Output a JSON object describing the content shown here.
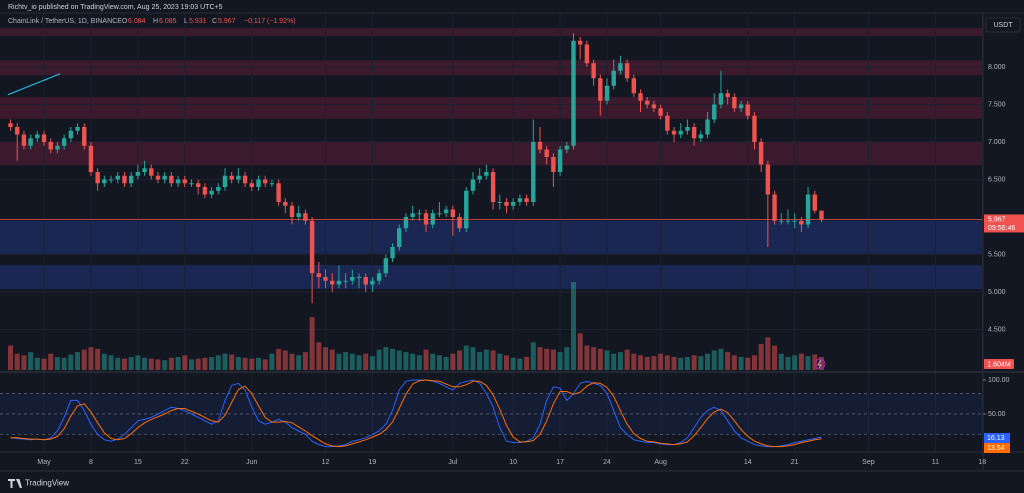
{
  "header": {
    "publisher": "Richtv_io published on TradingView.com, Aug 25, 2023 19:03 UTC+5"
  },
  "chart_data": {
    "type": "candlestick",
    "title": "ChainLink / TetherUS, 1D, BINANCE",
    "legend": [
      {
        "key": "O",
        "value": 6.084
      },
      {
        "key": "H",
        "value": 6.085
      },
      {
        "key": "L",
        "value": 5.931
      },
      {
        "key": "C",
        "value": 5.967
      }
    ],
    "change": "−0.117 (−1.92%)",
    "currency": "USDT",
    "xlim": [
      -1.57,
      145.1
    ],
    "xticks": [
      {
        "value": 5,
        "label": "May"
      },
      {
        "value": 12,
        "label": "8"
      },
      {
        "value": 19,
        "label": "15"
      },
      {
        "value": 26,
        "label": "22"
      },
      {
        "value": 36,
        "label": "Jun"
      },
      {
        "value": 47,
        "label": "12"
      },
      {
        "value": 54,
        "label": "19"
      },
      {
        "value": 66,
        "label": "Jul"
      },
      {
        "value": 75,
        "label": "10"
      },
      {
        "value": 82,
        "label": "17"
      },
      {
        "value": 89,
        "label": "24"
      },
      {
        "value": 97,
        "label": "Aug"
      },
      {
        "value": 110,
        "label": "14"
      },
      {
        "value": 117,
        "label": "21"
      },
      {
        "value": 128,
        "label": "Sep"
      },
      {
        "value": 138,
        "label": "11"
      },
      {
        "value": 145,
        "label": "18"
      }
    ],
    "ylim": [
      3.96,
      8.52
    ],
    "yticks": [
      {
        "value": 8,
        "label": "8.000"
      },
      {
        "value": 7.5,
        "label": "7.500"
      },
      {
        "value": 7,
        "label": "7.000"
      },
      {
        "value": 6.5,
        "label": "6.500"
      },
      {
        "value": 5.5,
        "label": "5.500"
      },
      {
        "value": 5,
        "label": "5.000"
      },
      {
        "value": 4.5,
        "label": "4.500"
      }
    ],
    "grid": true,
    "up_color": "#26a69a",
    "down_color": "#ef5350",
    "open": [
      7.25,
      7.2,
      7.1,
      6.95,
      7.05,
      7.1,
      7.0,
      6.9,
      6.95,
      7.05,
      7.15,
      7.2,
      6.95,
      6.6,
      6.45,
      6.5,
      6.5,
      6.55,
      6.45,
      6.55,
      6.6,
      6.65,
      6.55,
      6.5,
      6.55,
      6.45,
      6.5,
      6.45,
      6.45,
      6.4,
      6.3,
      6.35,
      6.4,
      6.55,
      6.5,
      6.55,
      6.45,
      6.4,
      6.5,
      6.45,
      6.45,
      6.2,
      6.15,
      6.0,
      6.05,
      5.95,
      5.25,
      5.2,
      5.15,
      5.1,
      5.15,
      5.15,
      5.2,
      5.2,
      5.1,
      5.15,
      5.25,
      5.45,
      5.6,
      5.85,
      6.0,
      6.05,
      6.05,
      5.9,
      6.05,
      6.05,
      6.1,
      6.0,
      5.85,
      6.35,
      6.5,
      6.55,
      6.6,
      6.2,
      6.2,
      6.15,
      6.2,
      6.25,
      6.2,
      7.0,
      6.9,
      6.8,
      6.6,
      6.9,
      6.95,
      8.35,
      8.3,
      8.05,
      7.85,
      7.55,
      7.75,
      7.95,
      8.05,
      7.85,
      7.65,
      7.55,
      7.5,
      7.45,
      7.35,
      7.15,
      7.1,
      7.15,
      7.2,
      7.05,
      7.1,
      7.3,
      7.5,
      7.65,
      7.6,
      7.45,
      7.5,
      7.35,
      7.0,
      6.7,
      6.3,
      5.95,
      5.95,
      5.95,
      5.95,
      5.9,
      6.3,
      6.084
    ],
    "high": [
      7.3,
      7.25,
      7.15,
      7.1,
      7.15,
      7.15,
      7.05,
      7.0,
      7.1,
      7.2,
      7.25,
      7.25,
      7.0,
      6.65,
      6.55,
      6.55,
      6.6,
      6.6,
      6.6,
      6.7,
      6.75,
      6.7,
      6.6,
      6.6,
      6.6,
      6.55,
      6.55,
      6.5,
      6.5,
      6.45,
      6.4,
      6.45,
      6.65,
      6.6,
      6.65,
      6.6,
      6.5,
      6.55,
      6.55,
      6.5,
      6.5,
      6.25,
      6.2,
      6.15,
      6.1,
      6.0,
      5.4,
      5.3,
      5.25,
      5.35,
      5.25,
      5.3,
      5.25,
      5.25,
      5.2,
      5.3,
      5.5,
      5.65,
      5.9,
      6.05,
      6.15,
      6.1,
      6.1,
      6.1,
      6.2,
      6.15,
      6.15,
      6.05,
      6.4,
      6.6,
      6.65,
      6.7,
      6.65,
      6.3,
      6.25,
      6.25,
      6.3,
      6.3,
      7.3,
      7.2,
      6.95,
      6.85,
      6.95,
      7.0,
      8.45,
      8.4,
      8.35,
      8.1,
      7.9,
      7.85,
      8.1,
      8.15,
      8.1,
      7.9,
      7.7,
      7.6,
      7.55,
      7.5,
      7.4,
      7.2,
      7.25,
      7.3,
      7.25,
      7.15,
      7.4,
      7.65,
      7.95,
      7.7,
      7.65,
      7.55,
      7.55,
      7.4,
      7.05,
      6.75,
      6.35,
      6.05,
      6.1,
      6.05,
      6.0,
      6.4,
      6.35,
      6.085
    ],
    "low": [
      7.15,
      6.75,
      6.9,
      6.9,
      7.0,
      6.95,
      6.85,
      6.85,
      6.9,
      7.0,
      7.1,
      6.9,
      6.55,
      6.35,
      6.4,
      6.45,
      6.45,
      6.4,
      6.4,
      6.5,
      6.55,
      6.5,
      6.45,
      6.45,
      6.4,
      6.4,
      6.4,
      6.4,
      6.3,
      6.25,
      6.25,
      6.3,
      6.35,
      6.45,
      6.45,
      6.4,
      6.35,
      6.35,
      6.4,
      6.4,
      6.15,
      6.05,
      5.9,
      5.95,
      5.9,
      4.85,
      5.05,
      5.05,
      5.0,
      5.05,
      5.05,
      5.1,
      5.05,
      5.0,
      5.0,
      5.1,
      5.2,
      5.4,
      5.55,
      5.8,
      5.95,
      5.95,
      5.8,
      5.85,
      6.0,
      6.0,
      5.75,
      5.8,
      5.8,
      6.3,
      6.45,
      6.5,
      6.1,
      6.1,
      6.05,
      6.1,
      6.15,
      6.15,
      6.15,
      6.85,
      6.7,
      6.4,
      6.55,
      6.85,
      6.9,
      8.1,
      8.0,
      7.75,
      7.35,
      7.5,
      7.7,
      7.9,
      7.8,
      7.6,
      7.4,
      7.45,
      7.4,
      7.3,
      7.1,
      7.0,
      7.05,
      7.1,
      6.95,
      7.0,
      7.05,
      7.25,
      7.45,
      7.5,
      7.4,
      7.4,
      7.3,
      6.9,
      6.6,
      5.6,
      5.9,
      5.9,
      5.9,
      5.85,
      5.8,
      5.85,
      6.05,
      5.931
    ],
    "close": [
      7.2,
      7.1,
      6.95,
      7.05,
      7.1,
      7.0,
      6.9,
      6.95,
      7.05,
      7.15,
      7.2,
      6.95,
      6.6,
      6.45,
      6.5,
      6.5,
      6.55,
      6.45,
      6.55,
      6.6,
      6.65,
      6.55,
      6.5,
      6.55,
      6.45,
      6.5,
      6.45,
      6.45,
      6.4,
      6.3,
      6.35,
      6.4,
      6.55,
      6.5,
      6.55,
      6.45,
      6.4,
      6.5,
      6.45,
      6.45,
      6.2,
      6.15,
      6.0,
      6.05,
      5.95,
      5.25,
      5.2,
      5.15,
      5.1,
      5.15,
      5.15,
      5.2,
      5.2,
      5.1,
      5.15,
      5.25,
      5.45,
      5.6,
      5.85,
      6.0,
      6.05,
      6.05,
      5.9,
      6.05,
      6.05,
      6.1,
      6.0,
      5.85,
      6.35,
      6.5,
      6.55,
      6.6,
      6.2,
      6.2,
      6.15,
      6.2,
      6.25,
      6.2,
      7.0,
      6.9,
      6.8,
      6.6,
      6.9,
      6.95,
      8.35,
      8.3,
      8.05,
      7.85,
      7.55,
      7.75,
      7.95,
      8.05,
      7.85,
      7.65,
      7.55,
      7.5,
      7.45,
      7.35,
      7.15,
      7.1,
      7.15,
      7.2,
      7.05,
      7.1,
      7.3,
      7.5,
      7.65,
      7.6,
      7.45,
      7.5,
      7.35,
      7.0,
      6.7,
      6.3,
      5.95,
      5.95,
      5.95,
      5.95,
      5.9,
      6.3,
      6.084,
      5.967
    ],
    "last_price": 5.967,
    "countdown": "09:56:46",
    "zones": [
      {
        "from": 8.41,
        "to": 8.52,
        "color": "#3b1a2e"
      },
      {
        "from": 7.89,
        "to": 8.09,
        "color": "#3b1a2e"
      },
      {
        "from": 7.31,
        "to": 7.6,
        "color": "#3b1a2e"
      },
      {
        "from": 6.69,
        "to": 7.01,
        "color": "#3b1a2e"
      },
      {
        "from": 5.51,
        "to": 5.95,
        "color": "#1a2753"
      },
      {
        "from": 5.04,
        "to": 5.36,
        "color": "#1a2753"
      }
    ],
    "trendline": {
      "x": [
        -0.4,
        7.4
      ],
      "y": [
        7.63,
        7.91
      ],
      "color": "#22c3e6"
    },
    "volume": {
      "vlim": [
        0,
        42
      ],
      "values": [
        3.0,
        2.0,
        1.8,
        2.2,
        1.5,
        1.4,
        2.0,
        1.6,
        1.5,
        1.9,
        2.2,
        2.5,
        2.8,
        2.6,
        2.0,
        1.8,
        1.5,
        1.4,
        1.6,
        1.8,
        1.5,
        1.4,
        1.3,
        1.2,
        1.5,
        1.6,
        1.8,
        1.3,
        1.4,
        1.5,
        1.6,
        1.8,
        2.0,
        1.9,
        1.6,
        1.5,
        1.4,
        1.5,
        1.3,
        2.0,
        2.6,
        2.4,
        2.0,
        1.8,
        2.2,
        6.5,
        3.4,
        2.8,
        2.5,
        2.0,
        2.2,
        2.0,
        1.8,
        2.0,
        1.7,
        2.5,
        2.8,
        2.6,
        2.4,
        2.2,
        2.0,
        1.8,
        2.5,
        2.0,
        1.8,
        1.6,
        2.0,
        2.4,
        3.0,
        2.8,
        2.2,
        2.5,
        2.4,
        2.0,
        1.8,
        1.5,
        1.4,
        1.6,
        3.4,
        2.8,
        2.6,
        2.5,
        2.2,
        2.8,
        10.8,
        4.5,
        3.0,
        2.8,
        2.6,
        2.4,
        2.0,
        2.2,
        2.5,
        2.0,
        1.8,
        1.6,
        1.7,
        2.0,
        1.8,
        1.6,
        1.5,
        1.6,
        1.8,
        1.7,
        2.0,
        2.4,
        2.6,
        2.2,
        1.8,
        1.6,
        1.5,
        1.8,
        3.2,
        4.0,
        3.0,
        2.0,
        1.6,
        1.8,
        2.0,
        1.7,
        1.9,
        1.604
      ],
      "last_label": "1.604M"
    },
    "stoch": {
      "ylim": [
        -5.9,
        108.8
      ],
      "yticks": [
        {
          "value": 100,
          "label": "100.00"
        },
        {
          "value": 50,
          "label": "50.00"
        }
      ],
      "bands": [
        80,
        50,
        20
      ],
      "series": [
        {
          "color": "#2962ff",
          "values": [
            15,
            14,
            13,
            12,
            13,
            12,
            15,
            25,
            45,
            70,
            70,
            55,
            35,
            20,
            12,
            10,
            13,
            20,
            30,
            40,
            42,
            45,
            50,
            55,
            60,
            58,
            55,
            50,
            45,
            40,
            35,
            40,
            70,
            92,
            95,
            85,
            60,
            40,
            35,
            38,
            42,
            38,
            30,
            25,
            20,
            10,
            5,
            2,
            2,
            3,
            5,
            10,
            12,
            15,
            20,
            25,
            35,
            55,
            85,
            98,
            100,
            100,
            100,
            98,
            95,
            90,
            85,
            95,
            98,
            100,
            95,
            80,
            60,
            30,
            10,
            8,
            8,
            10,
            15,
            35,
            70,
            90,
            88,
            70,
            80,
            95,
            98,
            95,
            92,
            80,
            55,
            30,
            20,
            12,
            10,
            8,
            8,
            6,
            5,
            5,
            8,
            15,
            30,
            45,
            55,
            60,
            55,
            40,
            25,
            15,
            10,
            5,
            3,
            2,
            2,
            3,
            5,
            8,
            10,
            12,
            14,
            16.13
          ]
        },
        {
          "color": "#ff6d00",
          "values": [
            15,
            15,
            14,
            13,
            13,
            12,
            13,
            17,
            28,
            47,
            62,
            65,
            53,
            37,
            22,
            14,
            12,
            14,
            21,
            30,
            37,
            42,
            46,
            50,
            55,
            58,
            58,
            54,
            50,
            45,
            40,
            38,
            48,
            67,
            86,
            91,
            80,
            62,
            45,
            38,
            38,
            39,
            37,
            31,
            25,
            18,
            12,
            6,
            3,
            2,
            3,
            6,
            9,
            12,
            16,
            20,
            27,
            38,
            58,
            79,
            94,
            99,
            100,
            99,
            98,
            94,
            90,
            90,
            93,
            98,
            98,
            92,
            78,
            57,
            33,
            16,
            9,
            9,
            11,
            20,
            40,
            65,
            83,
            83,
            79,
            82,
            91,
            96,
            95,
            89,
            76,
            55,
            35,
            21,
            14,
            10,
            9,
            7,
            6,
            5,
            6,
            9,
            18,
            30,
            43,
            53,
            57,
            52,
            40,
            27,
            17,
            10,
            6,
            3,
            2,
            2,
            3,
            5,
            8,
            10,
            12,
            13.54
          ]
        }
      ]
    }
  },
  "footer": {
    "brand": "TradingView"
  }
}
